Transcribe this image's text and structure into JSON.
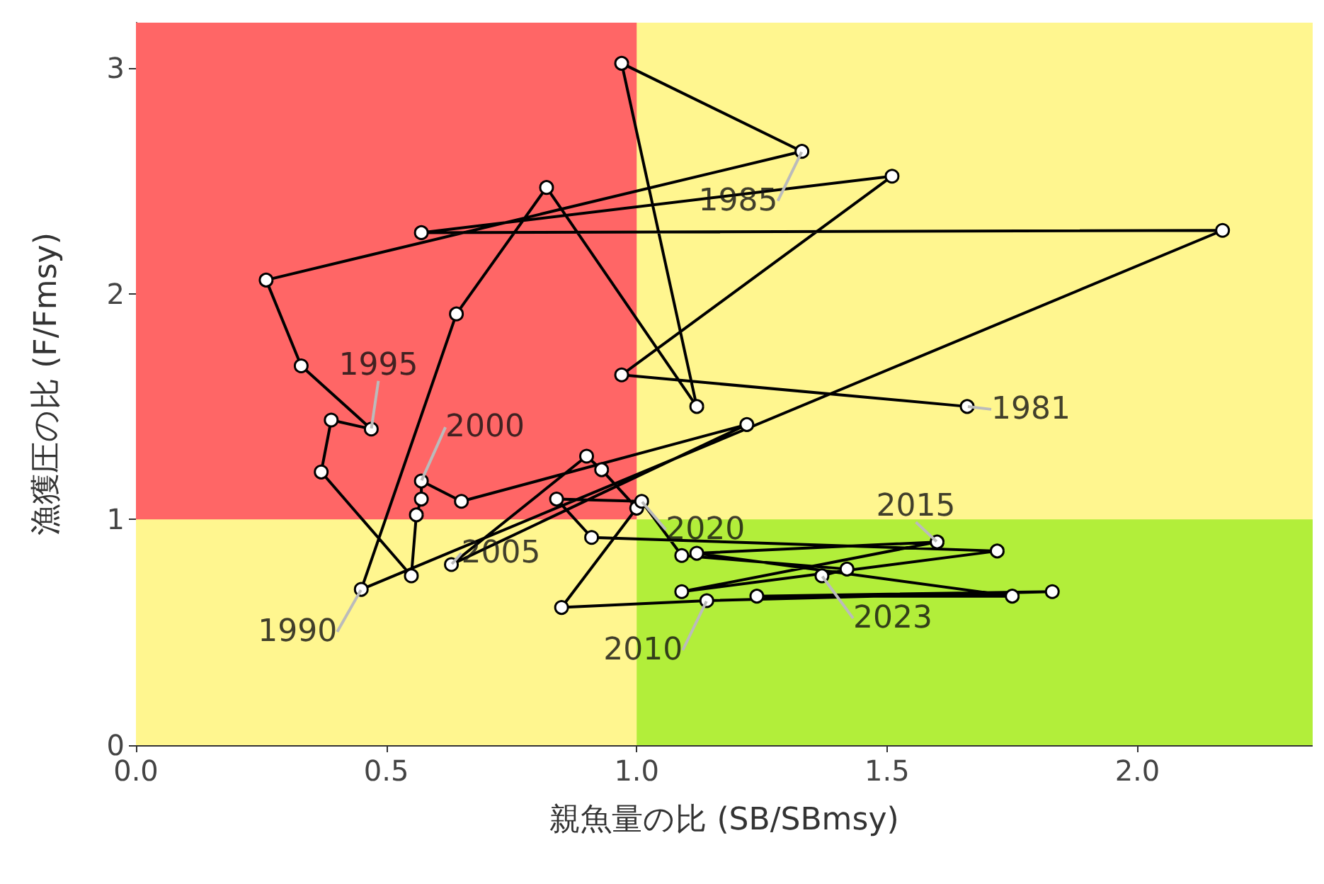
{
  "chart_data": {
    "type": "line",
    "xlabel": "親魚量の比 (SB/SBmsy)",
    "ylabel": "漁獲圧の比 (F/Fmsy)",
    "xlim": [
      0,
      2.35
    ],
    "ylim": [
      0,
      3.2
    ],
    "xticks": [
      {
        "value": 0,
        "label": "0.0"
      },
      {
        "value": 0.5,
        "label": "0.5"
      },
      {
        "value": 1,
        "label": "1.0"
      },
      {
        "value": 1.5,
        "label": "1.5"
      },
      {
        "value": 2,
        "label": "2.0"
      }
    ],
    "yticks": [
      0,
      1,
      2,
      3
    ],
    "marker": "circle",
    "line_style": "solid",
    "bands": [
      {
        "axis": "y",
        "from": 0,
        "to": 3.2,
        "color": "#fff68f"
      },
      {
        "axis": "x",
        "from": 0,
        "to": 1,
        "color": "#ff6666"
      },
      {
        "axis": "y",
        "from": 0,
        "to": 1,
        "color": "#b2ee3a"
      }
    ],
    "series": [
      {
        "color": "#000000",
        "x": [
          1.66,
          0.97,
          1.51,
          0.57,
          2.17,
          0.45,
          0.64,
          0.82,
          1.12,
          0.97,
          1.33,
          0.26,
          0.33,
          0.47,
          0.39,
          0.37,
          0.55,
          0.56,
          0.57,
          0.57,
          0.65,
          1.22,
          0.63,
          0.9,
          0.93,
          1.0,
          0.85,
          1.14,
          1.83,
          1.24,
          1.75,
          1.12,
          1.6,
          1.09,
          1.72,
          0.91,
          0.84,
          1.01,
          1.09,
          1.42,
          1.37
        ],
        "values": [
          1.5,
          1.64,
          2.52,
          2.27,
          2.28,
          0.69,
          1.91,
          2.47,
          1.5,
          3.02,
          2.63,
          2.06,
          1.68,
          1.4,
          1.44,
          1.21,
          0.75,
          1.02,
          1.09,
          1.17,
          1.08,
          1.42,
          0.8,
          1.28,
          1.22,
          1.05,
          0.61,
          0.64,
          0.68,
          0.66,
          0.66,
          0.85,
          0.9,
          0.68,
          0.86,
          0.92,
          1.09,
          1.08,
          0.84,
          0.78,
          0.75
        ]
      }
    ],
    "annotations": [
      {
        "text": "1981",
        "x": 1.66,
        "y": 1.5
      },
      {
        "text": "1985",
        "x": 1.33,
        "y": 2.63
      },
      {
        "text": "1990",
        "x": 0.45,
        "y": 0.69
      },
      {
        "text": "1995",
        "x": 0.47,
        "y": 1.4
      },
      {
        "text": "2000",
        "x": 0.57,
        "y": 1.17
      },
      {
        "text": "2005",
        "x": 0.63,
        "y": 0.8
      },
      {
        "text": "2010",
        "x": 1.14,
        "y": 0.64
      },
      {
        "text": "2015",
        "x": 1.6,
        "y": 0.9
      },
      {
        "text": "2020",
        "x": 1.01,
        "y": 1.08
      },
      {
        "text": "2023",
        "x": 1.37,
        "y": 0.75
      }
    ]
  }
}
